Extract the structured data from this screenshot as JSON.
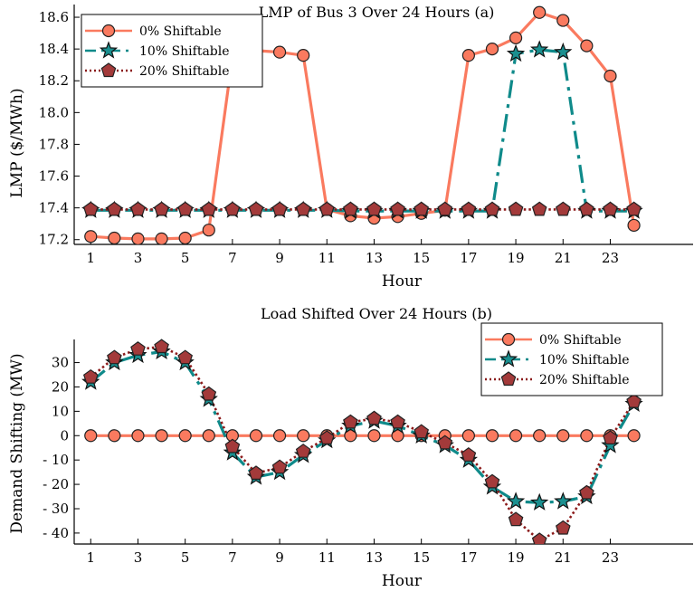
{
  "colors": {
    "s0": "#fa7a5f",
    "s10": "#0f8a8a",
    "s20": "#8b1a1a",
    "marker0": "#fa7a5f",
    "marker10": "#1a8f8f",
    "marker20": "#a33a3a"
  },
  "chart_data": [
    {
      "type": "line",
      "title": "LMP of Bus 3 Over 24 Hours (a)",
      "xlabel": "Hour",
      "ylabel": "LMP ($/MWh)",
      "xticks": [
        "1",
        "3",
        "5",
        "7",
        "9",
        "11",
        "13",
        "15",
        "17",
        "19",
        "21",
        "23"
      ],
      "yticks": [
        "17.2",
        "17.4",
        "17.6",
        "17.8",
        "18.0",
        "18.2",
        "18.4",
        "18.6"
      ],
      "ylim": [
        17.17,
        18.68
      ],
      "xlim": [
        0.3,
        24
      ],
      "legend_position": "top-left",
      "x": [
        1,
        2,
        3,
        4,
        5,
        6,
        7,
        8,
        9,
        10,
        11,
        12,
        13,
        14,
        15,
        16,
        17,
        18,
        19,
        20,
        21,
        22,
        23,
        24
      ],
      "series": [
        {
          "name": "0% Shiftable",
          "marker": "circle",
          "line": "solid",
          "values": [
            17.22,
            17.21,
            17.205,
            17.205,
            17.21,
            17.26,
            18.35,
            18.39,
            18.38,
            18.36,
            17.39,
            17.35,
            17.335,
            17.345,
            17.365,
            17.385,
            18.36,
            18.4,
            18.47,
            18.63,
            18.58,
            18.42,
            18.23,
            17.29
          ]
        },
        {
          "name": "10% Shiftable",
          "marker": "star",
          "line": "dashdot",
          "values": [
            17.385,
            17.385,
            17.385,
            17.385,
            17.385,
            17.385,
            17.385,
            17.385,
            17.385,
            17.385,
            17.385,
            17.38,
            17.38,
            17.38,
            17.38,
            17.38,
            17.38,
            17.38,
            18.37,
            18.395,
            18.38,
            17.38,
            17.38,
            17.38
          ]
        },
        {
          "name": "20% Shiftable",
          "marker": "pentagon",
          "line": "dotted",
          "values": [
            17.39,
            17.39,
            17.39,
            17.39,
            17.39,
            17.39,
            17.39,
            17.39,
            17.39,
            17.39,
            17.39,
            17.39,
            17.39,
            17.39,
            17.39,
            17.39,
            17.39,
            17.39,
            17.39,
            17.39,
            17.39,
            17.39,
            17.39,
            17.39
          ]
        }
      ]
    },
    {
      "type": "line",
      "title": "Load Shifted Over 24 Hours (b)",
      "xlabel": "Hour",
      "ylabel": "Demand Shifting (MW)",
      "xticks": [
        "1",
        "3",
        "5",
        "7",
        "9",
        "11",
        "13",
        "15",
        "17",
        "19",
        "21",
        "23"
      ],
      "yticks": [
        "30",
        "20",
        "10",
        "0",
        "- 10",
        "- 20",
        "- 30",
        "- 40"
      ],
      "ytick_values": [
        30,
        20,
        10,
        0,
        -10,
        -20,
        -30,
        -40
      ],
      "ylim": [
        -44.5,
        39.5
      ],
      "xlim": [
        0.3,
        24
      ],
      "legend_position": "top-right",
      "x": [
        1,
        2,
        3,
        4,
        5,
        6,
        7,
        8,
        9,
        10,
        11,
        12,
        13,
        14,
        15,
        16,
        17,
        18,
        19,
        20,
        21,
        22,
        23,
        24
      ],
      "series": [
        {
          "name": "0% Shiftable",
          "marker": "circle",
          "line": "solid",
          "values": [
            0,
            0,
            0,
            0,
            0,
            0,
            0,
            0,
            0,
            0,
            0,
            0,
            0,
            0,
            0,
            0,
            0,
            0,
            0,
            0,
            0,
            0,
            0,
            0
          ]
        },
        {
          "name": "10% Shiftable",
          "marker": "star",
          "line": "dashdot",
          "values": [
            22,
            30,
            33,
            34.5,
            30,
            15,
            -7,
            -17,
            -15,
            -8,
            -2,
            4,
            6,
            4,
            0,
            -4,
            -10,
            -21,
            -27,
            -27.5,
            -27,
            -25,
            -4,
            13
          ]
        },
        {
          "name": "20% Shiftable",
          "marker": "pentagon",
          "line": "dotted",
          "values": [
            24,
            32,
            35.5,
            36.5,
            32,
            17,
            -4.5,
            -15.5,
            -13,
            -6.5,
            -1,
            5.5,
            7,
            5.5,
            1.5,
            -3,
            -8,
            -19,
            -34.5,
            -43,
            -38,
            -23.5,
            -1,
            14
          ]
        }
      ]
    }
  ]
}
